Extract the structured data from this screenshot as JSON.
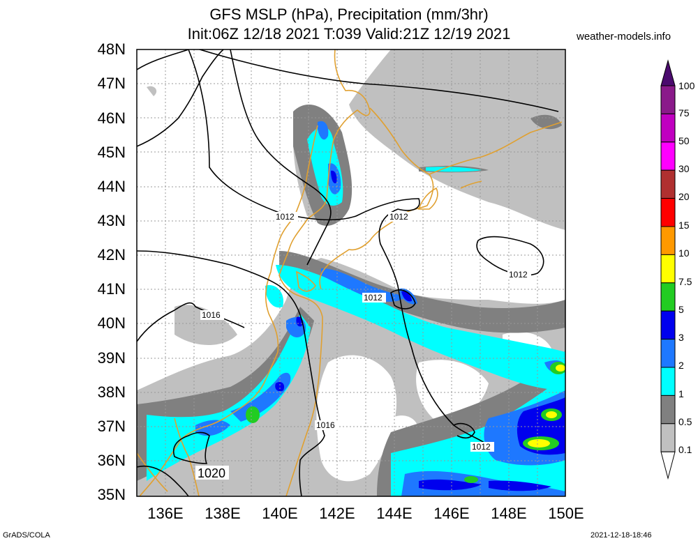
{
  "title_line1": "GFS MSLP (hPa), Precipitation (mm/3hr)",
  "title_line2": "Init:06Z 12/18 2021 T:039 Valid:21Z 12/19 2021",
  "source": "weather-models.info",
  "footer_left": "GrADS/COLA",
  "footer_right": "2021-12-18-18:46",
  "lat_labels": [
    "48N",
    "47N",
    "46N",
    "45N",
    "44N",
    "43N",
    "42N",
    "41N",
    "40N",
    "39N",
    "38N",
    "37N",
    "36N",
    "35N"
  ],
  "lon_labels": [
    "136E",
    "138E",
    "140E",
    "142E",
    "144E",
    "146E",
    "148E",
    "150E"
  ],
  "isobar_labels": [
    "1012",
    "1012",
    "1012",
    "1012",
    "1012",
    "1016",
    "1016",
    "1020"
  ],
  "colorbar": {
    "levels": [
      "100",
      "75",
      "50",
      "30",
      "20",
      "15",
      "10",
      "7.5",
      "5",
      "3",
      "2",
      "1",
      "0.5",
      "0.1"
    ],
    "colors": [
      "#8a1a8a",
      "#c000c0",
      "#ff00ff",
      "#b03030",
      "#ff0000",
      "#ff9900",
      "#ffff00",
      "#22cc22",
      "#0000ee",
      "#1e78ff",
      "#00ffff",
      "#808080",
      "#c0c0c0",
      "#ffffff"
    ]
  }
}
